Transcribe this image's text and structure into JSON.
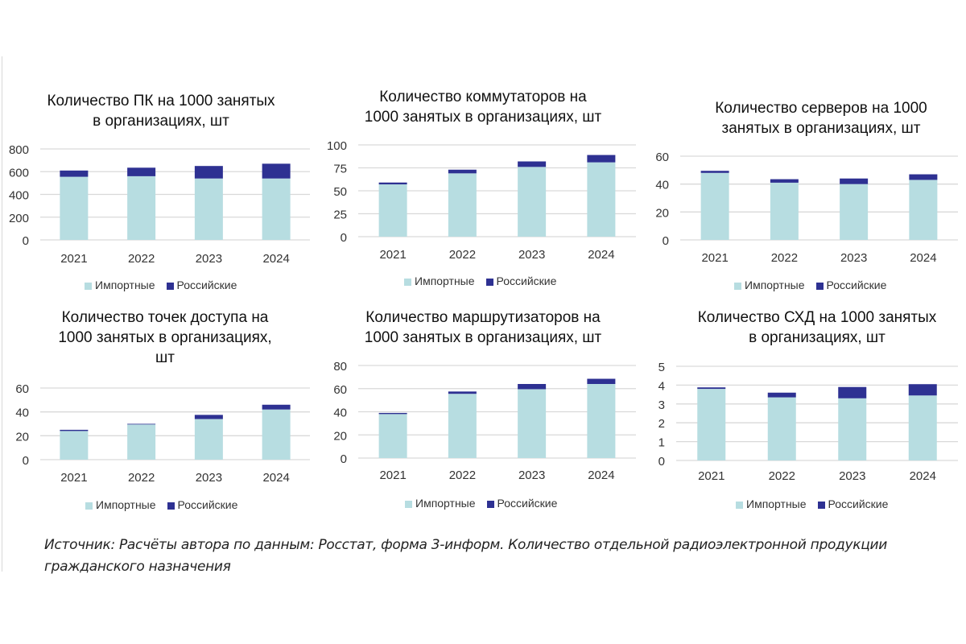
{
  "colors": {
    "imported": "#b7dde1",
    "russian": "#2e3192",
    "grid": "#d9d9d9"
  },
  "chart_data": [
    {
      "type": "bar",
      "stacked": true,
      "title": "Количество ПК на 1000 занятых\nв организациях, шт",
      "categories": [
        "2021",
        "2022",
        "2023",
        "2024"
      ],
      "series": [
        {
          "name": "Импортные",
          "values": [
            555,
            560,
            540,
            540
          ]
        },
        {
          "name": "Российские",
          "values": [
            55,
            75,
            110,
            130
          ]
        }
      ],
      "ylim": [
        0,
        800
      ],
      "yticks": [
        "0",
        "200",
        "400",
        "600",
        "800"
      ],
      "grid": true,
      "legend": "bottom"
    },
    {
      "type": "bar",
      "stacked": true,
      "title": "Количество коммутаторов на\n1000 занятых в организациях, шт",
      "categories": [
        "2021",
        "2022",
        "2023",
        "2024"
      ],
      "series": [
        {
          "name": "Импортные",
          "values": [
            57,
            69,
            76,
            81
          ]
        },
        {
          "name": "Российские",
          "values": [
            2,
            4,
            6,
            8
          ]
        }
      ],
      "ylim": [
        0,
        100
      ],
      "yticks": [
        "0",
        "25",
        "50",
        "75",
        "100"
      ],
      "grid": true,
      "legend": "bottom"
    },
    {
      "type": "bar",
      "stacked": true,
      "title": "Количество серверов на 1000\nзанятых в организациях, шт",
      "categories": [
        "2021",
        "2022",
        "2023",
        "2024"
      ],
      "series": [
        {
          "name": "Импортные",
          "values": [
            48,
            41,
            40,
            43
          ]
        },
        {
          "name": "Российские",
          "values": [
            1.5,
            2.5,
            4,
            4
          ]
        }
      ],
      "ylim": [
        0,
        60
      ],
      "yticks": [
        "0",
        "20",
        "40",
        "60"
      ],
      "grid": true,
      "legend": "bottom"
    },
    {
      "type": "bar",
      "stacked": true,
      "title": "Количество точек доступа на\n1000 занятых в организациях,\nшт",
      "categories": [
        "2021",
        "2022",
        "2023",
        "2024"
      ],
      "series": [
        {
          "name": "Импортные",
          "values": [
            24,
            29.5,
            34,
            42
          ]
        },
        {
          "name": "Российские",
          "values": [
            1,
            0.5,
            3.5,
            4
          ]
        }
      ],
      "ylim": [
        0,
        60
      ],
      "yticks": [
        "0",
        "20",
        "40",
        "60"
      ],
      "grid": true,
      "legend": "bottom"
    },
    {
      "type": "bar",
      "stacked": true,
      "title": "Количество маршрутизаторов на\n1000 занятых в организациях, шт",
      "categories": [
        "2021",
        "2022",
        "2023",
        "2024"
      ],
      "series": [
        {
          "name": "Импортные",
          "values": [
            38,
            55.5,
            59.5,
            64
          ]
        },
        {
          "name": "Российские",
          "values": [
            1,
            2,
            4.5,
            4.5
          ]
        }
      ],
      "ylim": [
        0,
        80
      ],
      "yticks": [
        "0",
        "20",
        "40",
        "60",
        "80"
      ],
      "grid": true,
      "legend": "bottom"
    },
    {
      "type": "bar",
      "stacked": true,
      "title": "Количество СХД на 1000 занятых\nв организациях, шт",
      "categories": [
        "2021",
        "2022",
        "2023",
        "2024"
      ],
      "series": [
        {
          "name": "Импортные",
          "values": [
            3.8,
            3.35,
            3.3,
            3.45
          ]
        },
        {
          "name": "Российские",
          "values": [
            0.08,
            0.25,
            0.6,
            0.6
          ]
        }
      ],
      "ylim": [
        0,
        5
      ],
      "yticks": [
        "0",
        "1",
        "2",
        "3",
        "4",
        "5"
      ],
      "grid": true,
      "legend": "bottom"
    }
  ],
  "source": "Источник: Расчёты автора по данным:  Росстат, форма 3-информ. Количество отдельной радиоэлектронной продукции гражданского назначения"
}
